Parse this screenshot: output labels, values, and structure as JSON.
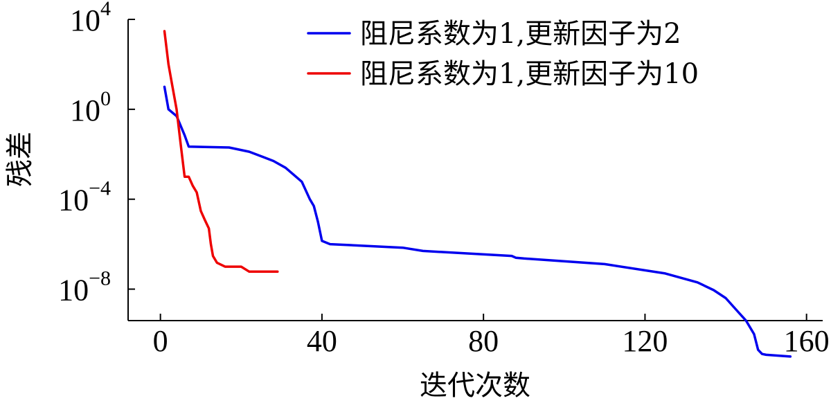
{
  "chart_data": {
    "type": "line",
    "xlabel": "迭代次数",
    "ylabel": "残差",
    "xlim": [
      -8,
      164
    ],
    "ylim_log10": [
      -9.4,
      4
    ],
    "yscale": "log",
    "x_ticks": [
      0,
      40,
      80,
      120,
      160
    ],
    "x_tick_labels": [
      "0",
      "40",
      "80",
      "120",
      "160"
    ],
    "y_ticks": [
      {
        "base": "10",
        "exp": "4",
        "log": 4
      },
      {
        "base": "10",
        "exp": "0",
        "log": 0
      },
      {
        "base": "10",
        "exp": "−4",
        "log": -4
      },
      {
        "base": "10",
        "exp": "−8",
        "log": -8
      }
    ],
    "legend_position": "top-right",
    "grid": false,
    "series": [
      {
        "name": "阻尼系数为1,更新因子为2",
        "color": "#0000ee",
        "x": [
          1,
          2,
          4,
          6,
          7,
          17,
          22,
          28,
          31,
          35,
          37,
          38,
          39,
          40,
          42,
          60,
          65,
          87,
          88,
          90,
          110,
          125,
          133,
          137,
          140,
          143,
          145,
          147,
          148,
          149,
          150,
          156
        ],
        "y": [
          "1e1",
          "1e0",
          "5e-1",
          "7e-2",
          "2.2e-2",
          "2e-2",
          "1.3e-2",
          "5e-3",
          "2.5e-3",
          "6e-4",
          "1e-4",
          "5e-5",
          "1e-5",
          "1.4e-6",
          "1e-6",
          "7e-7",
          "5e-7",
          "3e-7",
          "2.5e-7",
          "2.3e-7",
          "1.3e-7",
          "5e-8",
          "2e-8",
          "9e-9",
          "4e-9",
          "1e-9",
          "4e-10",
          "1e-10",
          "2e-11",
          "1.3e-11",
          "1.2e-11",
          "1e-11"
        ]
      },
      {
        "name": "阻尼系数为1,更新因子为10",
        "color": "#ee0000",
        "x": [
          1,
          2,
          3,
          4,
          5,
          6,
          7,
          8,
          9,
          10,
          11,
          12,
          12.5,
          13,
          14,
          16,
          20,
          22,
          29
        ],
        "y": [
          "3e3",
          "1e2",
          "1e1",
          "1e0",
          "3e-2",
          "1e-3",
          "1e-3",
          "4e-4",
          "2e-4",
          "3e-5",
          "1.2e-5",
          "5e-6",
          "1e-6",
          "3e-7",
          "1.5e-7",
          "1e-7",
          "1e-7",
          "6e-8",
          "6e-8"
        ]
      }
    ]
  }
}
